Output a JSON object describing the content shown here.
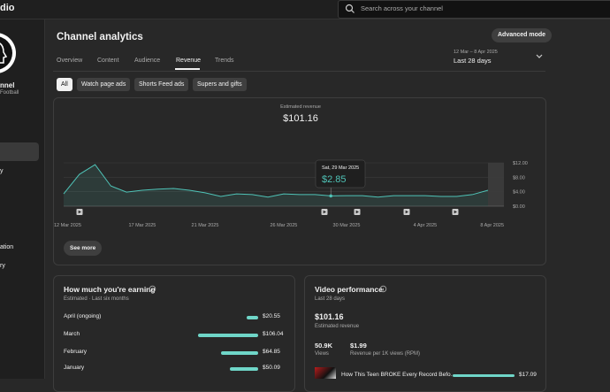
{
  "header": {
    "logo": "dio",
    "search_placeholder": "Search across your channel"
  },
  "sidebar": {
    "channel_name": "nnel",
    "channel_subtitle": "Football",
    "items": [
      "y",
      "ation",
      "ry"
    ]
  },
  "page": {
    "title": "Channel analytics",
    "advanced_button": "Advanced mode",
    "tabs": [
      "Overview",
      "Content",
      "Audience",
      "Revenue",
      "Trends"
    ],
    "active_tab": 3,
    "date_range": "12 Mar – 8 Apr 2025",
    "date_label": "Last 28 days",
    "filters": [
      "All",
      "Watch page ads",
      "Shorts Feed ads",
      "Supers and gifts"
    ],
    "active_filter": 0,
    "see_more": "See more"
  },
  "chart_data": [
    {
      "type": "line",
      "title": "Estimated revenue",
      "total": "$101.16",
      "color": "#4fc3b7",
      "categories": [
        "12 Mar 2025",
        null,
        null,
        null,
        null,
        "17 Mar 2025",
        null,
        null,
        null,
        "21 Mar 2025",
        null,
        null,
        null,
        null,
        "26 Mar 2025",
        null,
        null,
        null,
        "30 Mar 2025",
        null,
        null,
        null,
        null,
        "4 Apr 2025",
        null,
        null,
        null,
        "8 Apr 2025"
      ],
      "values": [
        3.4,
        8.8,
        11.5,
        5.6,
        3.9,
        4.4,
        4.7,
        4.9,
        4.4,
        3.7,
        2.7,
        3.4,
        3.2,
        2.5,
        3.4,
        3.2,
        3.2,
        2.85,
        2.9,
        2.9,
        2.5,
        2.9,
        2.9,
        2.9,
        2.7,
        2.7,
        3.2,
        4.4
      ],
      "ylim": [
        0,
        12
      ],
      "yticks": [
        {
          "value": 0,
          "label": "$0.00"
        },
        {
          "value": 4,
          "label": "$4.00"
        },
        {
          "value": 8,
          "label": "$8.00"
        },
        {
          "value": 12,
          "label": "$12.00"
        }
      ],
      "grid": true,
      "tooltip": {
        "index": 17,
        "date": "Sat, 29 Mar 2025",
        "value": "$2.85"
      }
    },
    {
      "type": "hbar",
      "title": "How much you're earning",
      "subtitle": "Estimated · Last six months",
      "color": "#6fd6c8",
      "categories": [
        "April (ongoing)",
        "March",
        "February",
        "January"
      ],
      "values": [
        20.55,
        106.04,
        64.85,
        50.09
      ],
      "value_labels": [
        "$20.55",
        "$106.04",
        "$64.85",
        "$50.09"
      ]
    }
  ],
  "video_performance": {
    "title": "Video performance",
    "subtitle": "Last 28 days",
    "revenue": "$101.16",
    "revenue_label": "Estimated revenue",
    "views": "50.9K",
    "views_label": "Views",
    "rpm": "$1.99",
    "rpm_label": "Revenue per 1K views (RPM)",
    "top_content": [
      {
        "title": "How This Teen BROKE Every Record Befo…",
        "value": 17.09,
        "value_label": "$17.09"
      }
    ]
  }
}
